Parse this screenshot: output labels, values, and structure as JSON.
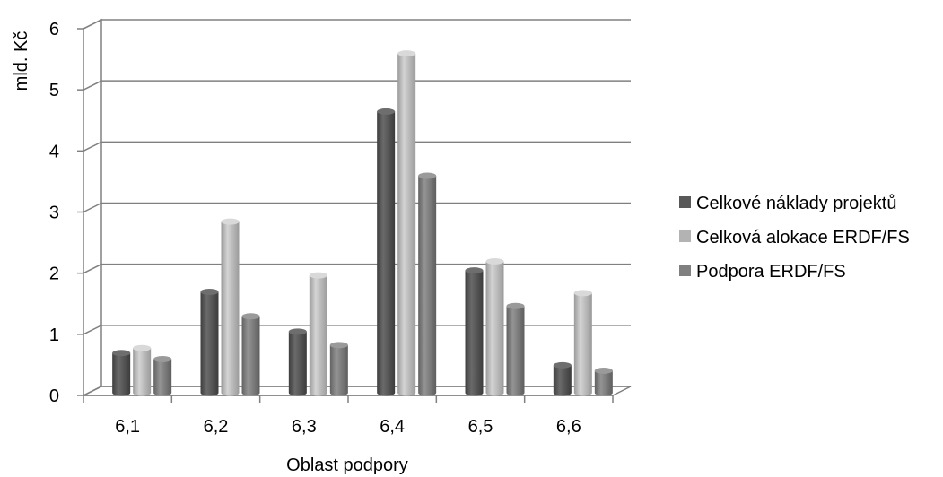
{
  "chart_data": {
    "type": "bar",
    "style": "3d-clustered-cylinder",
    "xlabel": "Oblast podpory",
    "ylabel": "mld. Kč",
    "ylim": [
      0,
      6
    ],
    "yticks": [
      "0",
      "1",
      "2",
      "3",
      "4",
      "5",
      "6"
    ],
    "categories": [
      "6,1",
      "6,2",
      "6,3",
      "6,4",
      "6,5",
      "6,6"
    ],
    "grid": true,
    "legend_position": "right",
    "series": [
      {
        "name": "Celkové náklady projektů",
        "color": "#595959",
        "values": [
          0.65,
          1.65,
          1.0,
          4.6,
          2.0,
          0.45
        ]
      },
      {
        "name": "Celková alokace ERDF/FS",
        "color": "#b3b3b3",
        "values": [
          0.73,
          2.8,
          1.92,
          5.55,
          2.15,
          1.63
        ]
      },
      {
        "name": "Podpora ERDF/FS",
        "color": "#808080",
        "values": [
          0.55,
          1.25,
          0.78,
          3.55,
          1.42,
          0.36
        ]
      }
    ]
  }
}
